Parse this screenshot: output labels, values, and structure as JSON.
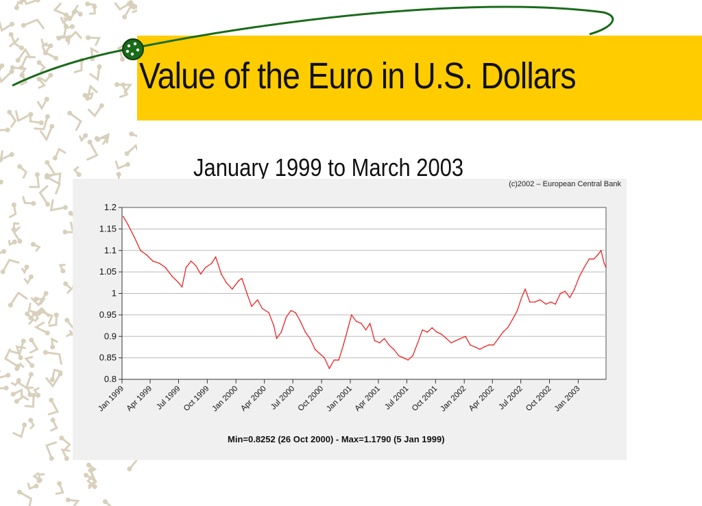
{
  "slide": {
    "title": "Value of the Euro in U.S. Dollars",
    "subtitle": "January 1999 to March 2003",
    "accent_color": "#ffcc00",
    "swoosh_color": "#1a6b1a"
  },
  "chart_data": {
    "type": "line",
    "credit": "(c)2002 – European Central Bank",
    "footer": "Min=0.8252 (26 Oct 2000) - Max=1.1790 (5 Jan 1999)",
    "ylim": [
      0.8,
      1.2
    ],
    "yticks": [
      "1.2",
      "1.15",
      "1.1",
      "1.05",
      "1",
      "0.95",
      "0.9",
      "0.85",
      "0.8"
    ],
    "xlim": [
      "1999-01-01",
      "2003-03-31"
    ],
    "xticks": [
      {
        "label": "Jan 1999",
        "date": "1999-01-01"
      },
      {
        "label": "Apr 1999",
        "date": "1999-04-01"
      },
      {
        "label": "Jul 1999",
        "date": "1999-07-01"
      },
      {
        "label": "Oct 1999",
        "date": "1999-10-01"
      },
      {
        "label": "Jan 2000",
        "date": "2000-01-01"
      },
      {
        "label": "Apr 2000",
        "date": "2000-04-01"
      },
      {
        "label": "Jul 2000",
        "date": "2000-07-01"
      },
      {
        "label": "Oct 2000",
        "date": "2000-10-01"
      },
      {
        "label": "Jan 2001",
        "date": "2001-01-01"
      },
      {
        "label": "Apr 2001",
        "date": "2001-04-01"
      },
      {
        "label": "Jul 2001",
        "date": "2001-07-01"
      },
      {
        "label": "Oct 2001",
        "date": "2001-10-01"
      },
      {
        "label": "Jan 2002",
        "date": "2002-01-01"
      },
      {
        "label": "Apr 2002",
        "date": "2002-04-01"
      },
      {
        "label": "Jul 2002",
        "date": "2002-07-01"
      },
      {
        "label": "Oct 2002",
        "date": "2002-10-01"
      },
      {
        "label": "Jan 2003",
        "date": "2003-01-01"
      }
    ],
    "grid": true,
    "series": [
      {
        "color": "#ee2222",
        "points": [
          {
            "x": "1999-01-05",
            "y": 1.179
          },
          {
            "x": "1999-01-20",
            "y": 1.16
          },
          {
            "x": "1999-02-10",
            "y": 1.13
          },
          {
            "x": "1999-03-01",
            "y": 1.1
          },
          {
            "x": "1999-03-20",
            "y": 1.09
          },
          {
            "x": "1999-04-10",
            "y": 1.075
          },
          {
            "x": "1999-05-01",
            "y": 1.07
          },
          {
            "x": "1999-05-20",
            "y": 1.06
          },
          {
            "x": "1999-06-10",
            "y": 1.04
          },
          {
            "x": "1999-07-01",
            "y": 1.025
          },
          {
            "x": "1999-07-12",
            "y": 1.015
          },
          {
            "x": "1999-07-25",
            "y": 1.06
          },
          {
            "x": "1999-08-10",
            "y": 1.075
          },
          {
            "x": "1999-08-25",
            "y": 1.065
          },
          {
            "x": "1999-09-10",
            "y": 1.045
          },
          {
            "x": "1999-09-25",
            "y": 1.06
          },
          {
            "x": "1999-10-15",
            "y": 1.07
          },
          {
            "x": "1999-10-28",
            "y": 1.085
          },
          {
            "x": "1999-11-15",
            "y": 1.045
          },
          {
            "x": "1999-12-01",
            "y": 1.025
          },
          {
            "x": "1999-12-20",
            "y": 1.01
          },
          {
            "x": "2000-01-10",
            "y": 1.03
          },
          {
            "x": "2000-01-20",
            "y": 1.035
          },
          {
            "x": "2000-02-05",
            "y": 1.0
          },
          {
            "x": "2000-02-20",
            "y": 0.97
          },
          {
            "x": "2000-03-10",
            "y": 0.985
          },
          {
            "x": "2000-03-25",
            "y": 0.965
          },
          {
            "x": "2000-04-15",
            "y": 0.955
          },
          {
            "x": "2000-05-01",
            "y": 0.925
          },
          {
            "x": "2000-05-10",
            "y": 0.895
          },
          {
            "x": "2000-05-25",
            "y": 0.91
          },
          {
            "x": "2000-06-10",
            "y": 0.945
          },
          {
            "x": "2000-06-25",
            "y": 0.96
          },
          {
            "x": "2000-07-10",
            "y": 0.955
          },
          {
            "x": "2000-07-25",
            "y": 0.935
          },
          {
            "x": "2000-08-10",
            "y": 0.91
          },
          {
            "x": "2000-08-25",
            "y": 0.895
          },
          {
            "x": "2000-09-10",
            "y": 0.87
          },
          {
            "x": "2000-09-25",
            "y": 0.86
          },
          {
            "x": "2000-10-10",
            "y": 0.85
          },
          {
            "x": "2000-10-26",
            "y": 0.8252
          },
          {
            "x": "2000-11-10",
            "y": 0.845
          },
          {
            "x": "2000-11-25",
            "y": 0.845
          },
          {
            "x": "2000-12-10",
            "y": 0.88
          },
          {
            "x": "2000-12-25",
            "y": 0.92
          },
          {
            "x": "2001-01-05",
            "y": 0.95
          },
          {
            "x": "2001-01-20",
            "y": 0.935
          },
          {
            "x": "2001-02-05",
            "y": 0.93
          },
          {
            "x": "2001-02-20",
            "y": 0.915
          },
          {
            "x": "2001-03-05",
            "y": 0.93
          },
          {
            "x": "2001-03-20",
            "y": 0.89
          },
          {
            "x": "2001-04-05",
            "y": 0.885
          },
          {
            "x": "2001-04-20",
            "y": 0.895
          },
          {
            "x": "2001-05-05",
            "y": 0.88
          },
          {
            "x": "2001-05-20",
            "y": 0.87
          },
          {
            "x": "2001-06-05",
            "y": 0.855
          },
          {
            "x": "2001-06-20",
            "y": 0.85
          },
          {
            "x": "2001-07-05",
            "y": 0.845
          },
          {
            "x": "2001-07-20",
            "y": 0.855
          },
          {
            "x": "2001-08-05",
            "y": 0.885
          },
          {
            "x": "2001-08-20",
            "y": 0.915
          },
          {
            "x": "2001-09-05",
            "y": 0.91
          },
          {
            "x": "2001-09-20",
            "y": 0.92
          },
          {
            "x": "2001-10-05",
            "y": 0.91
          },
          {
            "x": "2001-10-20",
            "y": 0.905
          },
          {
            "x": "2001-11-05",
            "y": 0.895
          },
          {
            "x": "2001-11-20",
            "y": 0.885
          },
          {
            "x": "2001-12-05",
            "y": 0.89
          },
          {
            "x": "2001-12-20",
            "y": 0.895
          },
          {
            "x": "2002-01-05",
            "y": 0.9
          },
          {
            "x": "2002-01-20",
            "y": 0.88
          },
          {
            "x": "2002-02-05",
            "y": 0.875
          },
          {
            "x": "2002-02-20",
            "y": 0.87
          },
          {
            "x": "2002-03-05",
            "y": 0.875
          },
          {
            "x": "2002-03-20",
            "y": 0.88
          },
          {
            "x": "2002-04-05",
            "y": 0.88
          },
          {
            "x": "2002-04-20",
            "y": 0.895
          },
          {
            "x": "2002-05-05",
            "y": 0.91
          },
          {
            "x": "2002-05-20",
            "y": 0.92
          },
          {
            "x": "2002-06-05",
            "y": 0.94
          },
          {
            "x": "2002-06-20",
            "y": 0.96
          },
          {
            "x": "2002-07-01",
            "y": 0.985
          },
          {
            "x": "2002-07-15",
            "y": 1.01
          },
          {
            "x": "2002-07-30",
            "y": 0.98
          },
          {
            "x": "2002-08-15",
            "y": 0.98
          },
          {
            "x": "2002-09-01",
            "y": 0.985
          },
          {
            "x": "2002-09-20",
            "y": 0.975
          },
          {
            "x": "2002-10-05",
            "y": 0.98
          },
          {
            "x": "2002-10-20",
            "y": 0.975
          },
          {
            "x": "2002-11-05",
            "y": 1.0
          },
          {
            "x": "2002-11-20",
            "y": 1.005
          },
          {
            "x": "2002-12-05",
            "y": 0.99
          },
          {
            "x": "2002-12-20",
            "y": 1.01
          },
          {
            "x": "2003-01-05",
            "y": 1.04
          },
          {
            "x": "2003-01-20",
            "y": 1.06
          },
          {
            "x": "2003-02-05",
            "y": 1.08
          },
          {
            "x": "2003-02-20",
            "y": 1.08
          },
          {
            "x": "2003-03-05",
            "y": 1.09
          },
          {
            "x": "2003-03-15",
            "y": 1.1
          },
          {
            "x": "2003-03-25",
            "y": 1.07
          },
          {
            "x": "2003-03-31",
            "y": 1.06
          }
        ]
      }
    ]
  }
}
